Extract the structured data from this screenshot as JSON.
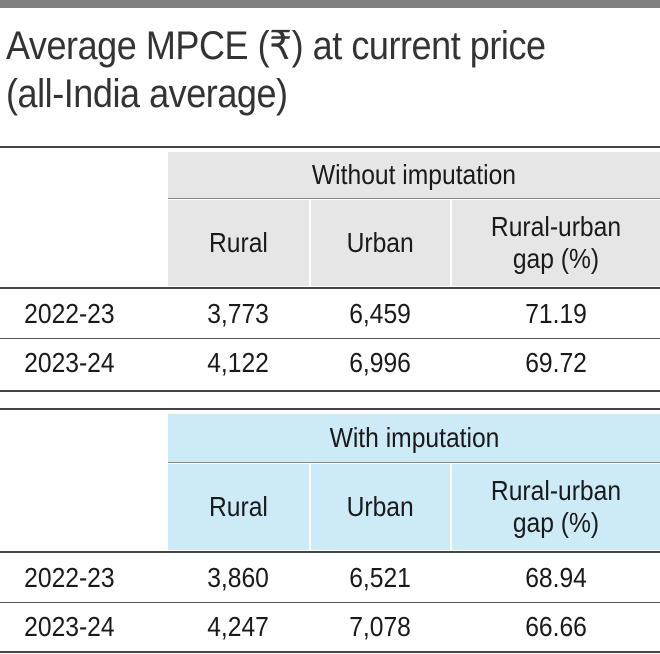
{
  "title_lines": [
    "Average MPCE (₹) at current price",
    "(all-India average)"
  ],
  "chart_data": {
    "type": "table",
    "title": "Average MPCE (₹) at current price (all-India average)",
    "tables": [
      {
        "group": "Without imputation",
        "columns": [
          "Rural",
          "Urban",
          "Rural-urban gap (%)"
        ],
        "rows": [
          {
            "year": "2022-23",
            "rural": "3,773",
            "urban": "6,459",
            "gap": "71.19"
          },
          {
            "year": "2023-24",
            "rural": "4,122",
            "urban": "6,996",
            "gap": "69.72"
          }
        ]
      },
      {
        "group": "With imputation",
        "columns": [
          "Rural",
          "Urban",
          "Rural-urban gap (%)"
        ],
        "rows": [
          {
            "year": "2022-23",
            "rural": "3,860",
            "urban": "6,521",
            "gap": "68.94"
          },
          {
            "year": "2023-24",
            "rural": "4,247",
            "urban": "7,078",
            "gap": "66.66"
          }
        ]
      }
    ],
    "colors": {
      "without_header": "#e6e6e6",
      "with_header": "#cdeaf7",
      "top_bar": "#808080"
    }
  }
}
